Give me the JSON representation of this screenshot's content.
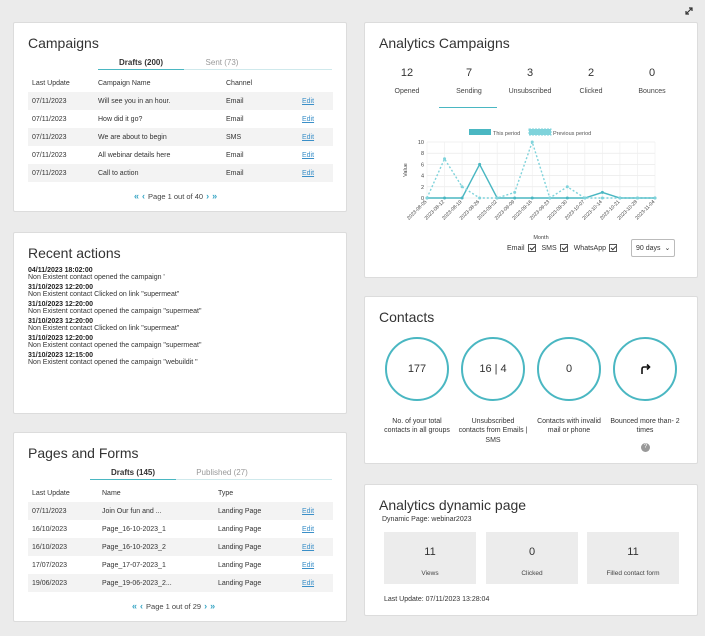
{
  "campaigns": {
    "title": "Campaigns",
    "tabs": [
      "Drafts (200)",
      "Sent (73)"
    ],
    "headers": [
      "Last Update",
      "Campaign Name",
      "Channel",
      ""
    ],
    "rows": [
      {
        "date": "07/11/2023",
        "name": "Will see you in an hour.",
        "channel": "Email",
        "action": "Edit"
      },
      {
        "date": "07/11/2023",
        "name": "How did it go?",
        "channel": "Email",
        "action": "Edit"
      },
      {
        "date": "07/11/2023",
        "name": "We are about to begin",
        "channel": "SMS",
        "action": "Edit"
      },
      {
        "date": "07/11/2023",
        "name": "All webinar details here",
        "channel": "Email",
        "action": "Edit"
      },
      {
        "date": "07/11/2023",
        "name": "Call to action",
        "channel": "Email",
        "action": "Edit"
      }
    ],
    "pager": "Page 1 out of 40"
  },
  "recent": {
    "title": "Recent actions",
    "items": [
      {
        "date": "04/11/2023 18:02:00",
        "desc": "Non Existent contact opened the campaign '"
      },
      {
        "date": "31/10/2023 12:20:00",
        "desc": "Non Existent contact Clicked on link \"supermeat\""
      },
      {
        "date": "31/10/2023 12:20:00",
        "desc": "Non Existent contact opened the campaign \"supermeat\""
      },
      {
        "date": "31/10/2023 12:20:00",
        "desc": "Non Existent contact Clicked on link \"supermeat\""
      },
      {
        "date": "31/10/2023 12:20:00",
        "desc": "Non Existent contact opened the campaign \"supermeat\""
      },
      {
        "date": "31/10/2023 12:15:00",
        "desc": "Non Existent contact opened the campaign \"webuildit \""
      }
    ]
  },
  "pages": {
    "title": "Pages and Forms",
    "tabs": [
      "Drafts (145)",
      "Published (27)"
    ],
    "headers": [
      "Last Update",
      "Name",
      "Type",
      ""
    ],
    "rows": [
      {
        "date": "07/11/2023",
        "name": "Join Our fun and ...",
        "type": "Landing Page",
        "action": "Edit"
      },
      {
        "date": "16/10/2023",
        "name": "Page_16-10-2023_1",
        "type": "Landing Page",
        "action": "Edit"
      },
      {
        "date": "16/10/2023",
        "name": "Page_16-10-2023_2",
        "type": "Landing Page",
        "action": "Edit"
      },
      {
        "date": "17/07/2023",
        "name": "Page_17-07-2023_1",
        "type": "Landing Page",
        "action": "Edit"
      },
      {
        "date": "19/06/2023",
        "name": "Page_19-06-2023_2...",
        "type": "Landing Page",
        "action": "Edit"
      }
    ],
    "pager": "Page 1 out of 29"
  },
  "analytics": {
    "title": "Analytics Campaigns",
    "stats": [
      {
        "value": "12",
        "label": "Opened"
      },
      {
        "value": "7",
        "label": "Sending"
      },
      {
        "value": "3",
        "label": "Unsubscribed"
      },
      {
        "value": "2",
        "label": "Clicked"
      },
      {
        "value": "0",
        "label": "Bounces"
      }
    ],
    "filters": {
      "email": "Email",
      "sms": "SMS",
      "whatsapp": "WhatsApp",
      "range": "90 days"
    }
  },
  "chart_data": {
    "type": "line",
    "x": [
      "2023-08-05",
      "2023-08-12",
      "2023-08-19",
      "2023-08-26",
      "2023-09-02",
      "2023-09-09",
      "2023-09-16",
      "2023-09-23",
      "2023-09-30",
      "2023-10-07",
      "2023-10-14",
      "2023-10-21",
      "2023-10-28",
      "2023-11-04"
    ],
    "series": [
      {
        "name": "This period",
        "values": [
          0,
          0,
          0,
          6,
          0,
          0,
          0,
          0,
          0,
          0,
          1,
          0,
          0,
          0
        ],
        "color": "#4ab7c2"
      },
      {
        "name": "Previous period",
        "values": [
          0,
          7,
          2,
          0,
          0,
          1,
          10,
          0,
          2,
          0,
          0,
          0,
          0,
          0
        ],
        "color": "#7fd3db"
      }
    ],
    "xlabel": "Month",
    "ylabel": "Value",
    "ylim": [
      0,
      10
    ],
    "yticks": [
      "0",
      "2",
      "4",
      "6",
      "8",
      "10"
    ],
    "grid": true,
    "legend": "top"
  },
  "contacts": {
    "title": "Contacts",
    "items": [
      {
        "value": "177",
        "label": "No. of your total contacts in all groups"
      },
      {
        "value": "16 | 4",
        "label": "Unsubscribed contacts from Emails | SMS"
      },
      {
        "value": "0",
        "label": "Contacts with invalid mail or phone"
      },
      {
        "value": "",
        "label": "Bounced more than- 2 times",
        "icon": "redo-icon"
      }
    ]
  },
  "dynamic": {
    "title": "Analytics dynamic page",
    "subtitle": "Dynamic Page: webinar2023",
    "boxes": [
      {
        "value": "11",
        "label": "Views"
      },
      {
        "value": "0",
        "label": "Clicked"
      },
      {
        "value": "11",
        "label": "Filled contact form"
      }
    ],
    "last_update": "Last Update: 07/11/2023 13:28:04"
  }
}
